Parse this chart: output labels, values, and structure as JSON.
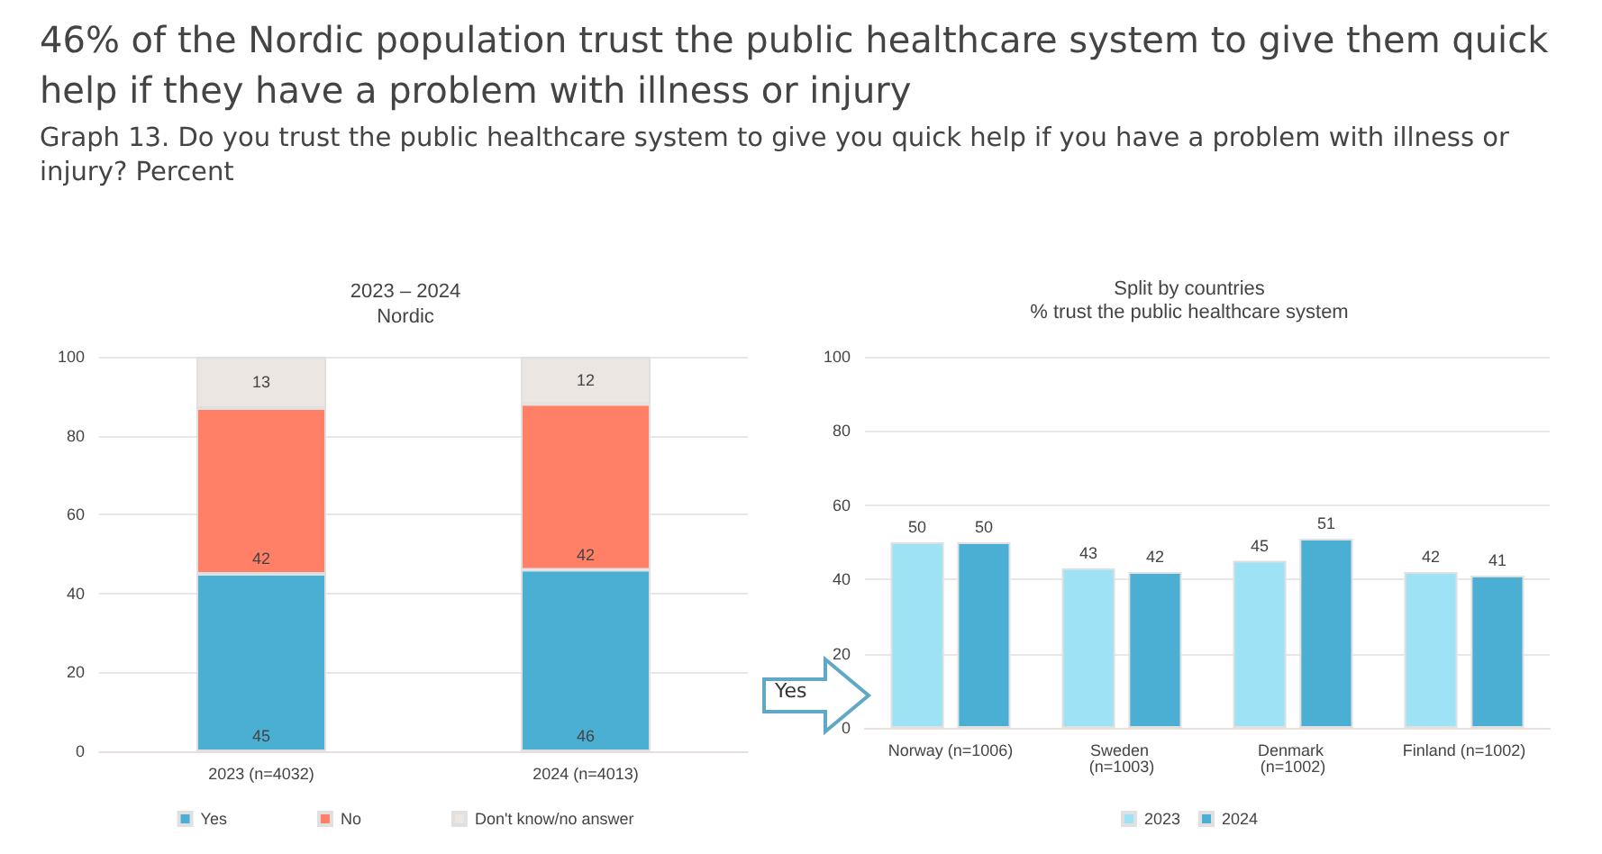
{
  "chart_data": [
    {
      "type": "bar",
      "title": "46% of the Nordic population trust the public healthcare system to give them quick help if they have a problem with illness or injury",
      "subtitle": "Graph 13. Do you trust the public healthcare system to give you quick help if you have a problem with illness or injury? Percent",
      "annotations": [
        "2023 – 2024",
        "Nordic"
      ],
      "categories": [
        "2023 (n=4032)",
        "2024 (n=4013)"
      ],
      "stacked": true,
      "series": [
        {
          "name": "Yes",
          "color": "#4bafd4",
          "values": [
            45,
            46
          ]
        },
        {
          "name": "No",
          "color": "#ff8066",
          "values": [
            42,
            42
          ]
        },
        {
          "name": "Don't know/no answer",
          "color": "#ece6e2",
          "values": [
            13,
            12
          ]
        }
      ],
      "ylim": [
        0,
        100
      ],
      "yticks": [
        0,
        20,
        40,
        60,
        80,
        100
      ],
      "grid": "y",
      "legend": "bottom",
      "data_labels": true
    },
    {
      "type": "bar",
      "title": "Split by countries",
      "subtitle": "% trust the public healthcare system",
      "annotations": [
        "Yes"
      ],
      "categories": [
        "Norway (n=1006)",
        "Sweden (n=1003)",
        "Denmark (n=1002)",
        "Finland (n=1002)"
      ],
      "series": [
        {
          "name": "2023",
          "color": "#9de3f5",
          "values": [
            50,
            43,
            45,
            42
          ]
        },
        {
          "name": "2024",
          "color": "#4bafd4",
          "values": [
            50,
            42,
            51,
            41
          ]
        }
      ],
      "ylim": [
        0,
        100
      ],
      "yticks": [
        0,
        20,
        40,
        60,
        80,
        100
      ],
      "grid": "y",
      "legend": "bottom",
      "data_labels": true
    }
  ]
}
